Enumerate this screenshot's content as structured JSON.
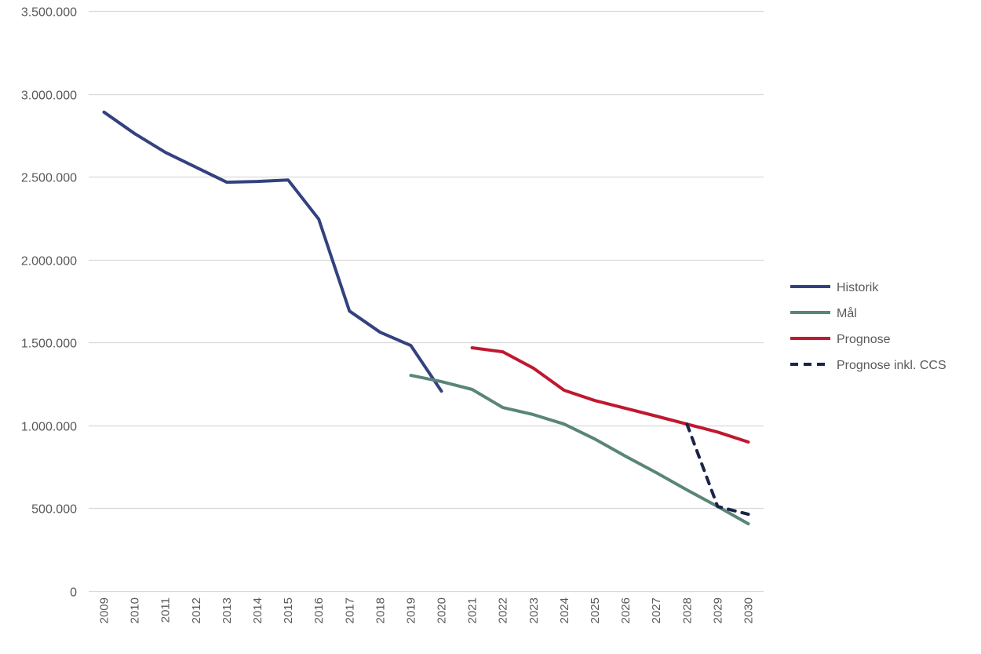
{
  "chart_data": {
    "type": "line",
    "title": "",
    "xlabel": "",
    "ylabel": "",
    "ylim": [
      0,
      3500000
    ],
    "yticks": [
      0,
      500000,
      1000000,
      1500000,
      2000000,
      2500000,
      3000000,
      3500000
    ],
    "ytick_labels": [
      "0",
      "500.000",
      "1.000.000",
      "1.500.000",
      "2.000.000",
      "2.500.000",
      "3.000.000",
      "3.500.000"
    ],
    "grid": true,
    "legend_position": "right",
    "categories": [
      "2009",
      "2010",
      "2011",
      "2012",
      "2013",
      "2014",
      "2015",
      "2016",
      "2017",
      "2018",
      "2019",
      "2020",
      "2021",
      "2022",
      "2023",
      "2024",
      "2025",
      "2026",
      "2027",
      "2028",
      "2029",
      "2030"
    ],
    "series": [
      {
        "name": "Historik",
        "color": "#33427F",
        "dash": false,
        "values": [
          2890000,
          2760000,
          2647000,
          2557000,
          2467000,
          2472000,
          2481000,
          2244000,
          1690000,
          1562000,
          1482000,
          1207000,
          null,
          null,
          null,
          null,
          null,
          null,
          null,
          null,
          null,
          null
        ]
      },
      {
        "name": "Mål",
        "color": "#5A8579",
        "dash": false,
        "values": [
          null,
          null,
          null,
          null,
          null,
          null,
          null,
          null,
          null,
          null,
          1302000,
          1264000,
          1217000,
          1108000,
          1065000,
          1008000,
          918000,
          814000,
          715000,
          611000,
          511000,
          407000
        ]
      },
      {
        "name": "Prognose",
        "color": "#C0182F",
        "dash": false,
        "values": [
          null,
          null,
          null,
          null,
          null,
          null,
          null,
          null,
          null,
          null,
          null,
          null,
          1468000,
          1444000,
          1345000,
          1212000,
          1150000,
          1103000,
          1056000,
          1008000,
          960000,
          900000
        ]
      },
      {
        "name": "Prognose inkl. CCS",
        "color": "#1B2448",
        "dash": true,
        "values": [
          null,
          null,
          null,
          null,
          null,
          null,
          null,
          null,
          null,
          null,
          null,
          null,
          null,
          null,
          null,
          null,
          null,
          null,
          null,
          1008000,
          511000,
          464000
        ]
      }
    ]
  }
}
